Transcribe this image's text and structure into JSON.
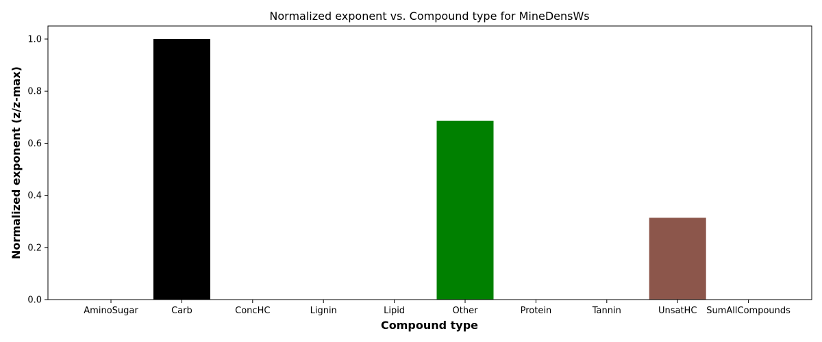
{
  "chart_data": {
    "type": "bar",
    "title": "Normalized exponent vs. Compound type for MineDensWs",
    "xlabel": "Compound type",
    "ylabel": "Normalized exponent (z/z-max)",
    "categories": [
      "AminoSugar",
      "Carb",
      "ConcHC",
      "Lignin",
      "Lipid",
      "Other",
      "Protein",
      "Tannin",
      "UnsatHC",
      "SumAllCompounds"
    ],
    "values": [
      0,
      1.0,
      0,
      0,
      0,
      0.686,
      0,
      0,
      0.314,
      0
    ],
    "colors": [
      "#1f77b4",
      "#000000",
      "#1f77b4",
      "#1f77b4",
      "#1f77b4",
      "#008000",
      "#1f77b4",
      "#1f77b4",
      "#8c564b",
      "#1f77b4"
    ],
    "ylim": [
      0,
      1.05
    ],
    "yticks": [
      0.0,
      0.2,
      0.4,
      0.6,
      0.8,
      1.0
    ],
    "ytick_labels": [
      "0.0",
      "0.2",
      "0.4",
      "0.6",
      "0.8",
      "1.0"
    ],
    "grid": false,
    "legend": "none"
  }
}
